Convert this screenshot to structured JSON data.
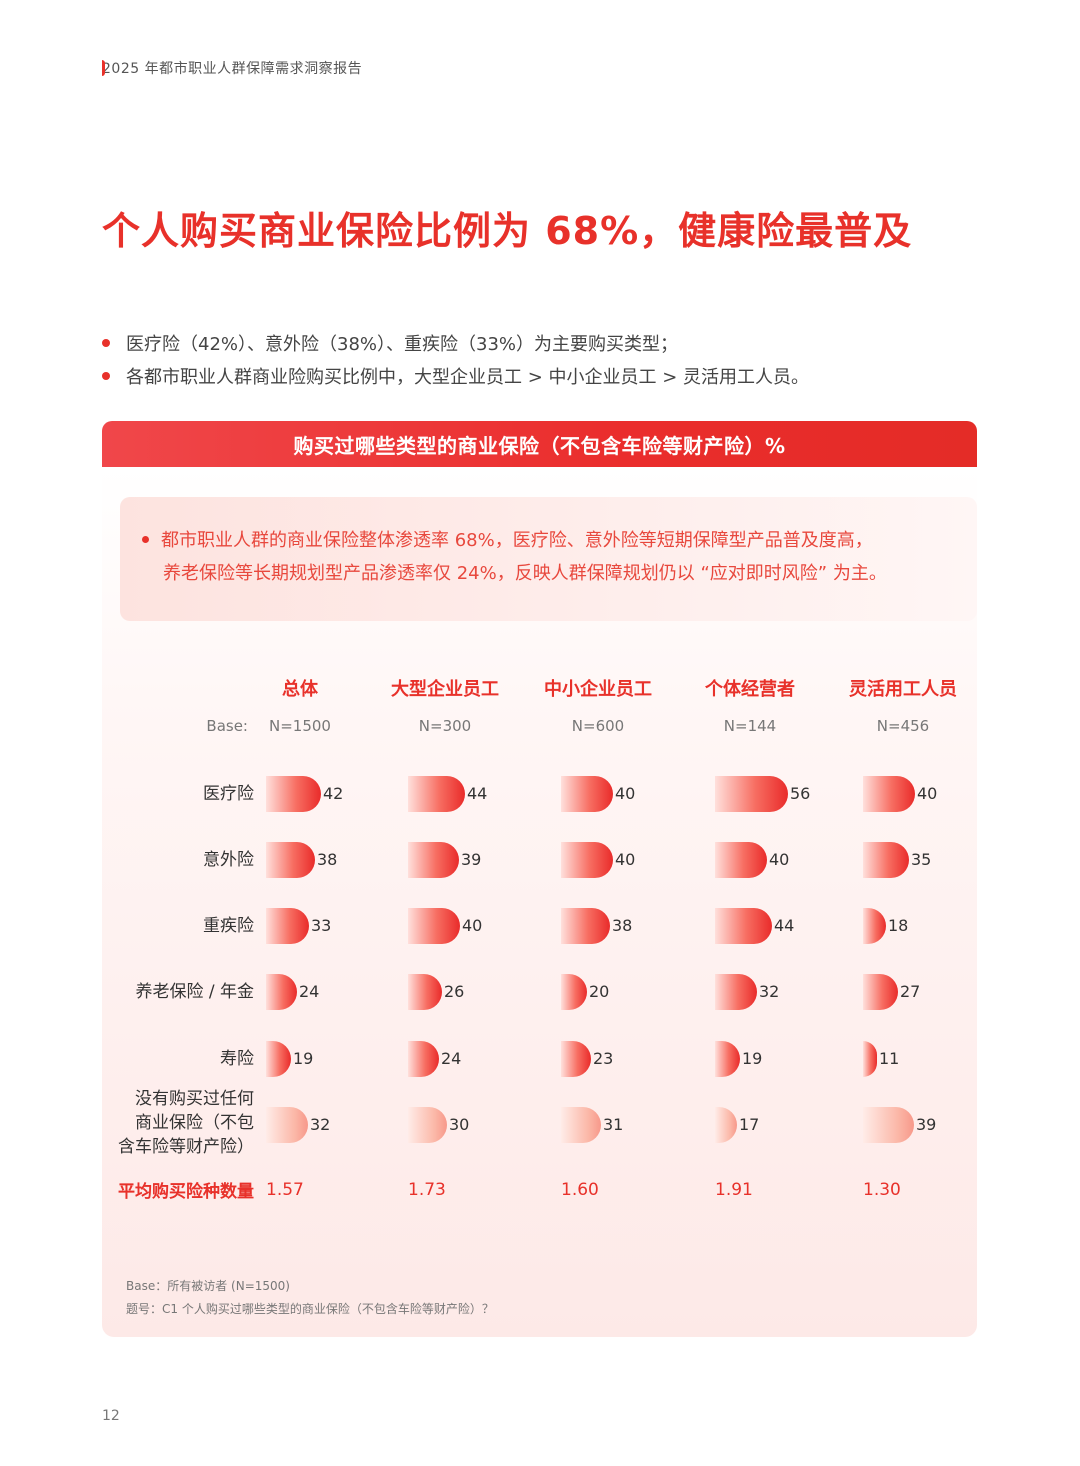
{
  "header": {
    "report_title": "2025 年都市职业人群保障需求洞察报告"
  },
  "page_title": "个人购买商业保险比例为 68%，健康险最普及",
  "bullets": [
    "医疗险（42%）、意外险（38%）、重疾险（33%）为主要购买类型；",
    "各都市职业人群商业险购买比例中，大型企业员工 > 中小企业员工 > 灵活用工人员。"
  ],
  "section_title": "购买过哪些类型的商业保险（不包含车险等财产险）%",
  "insight": {
    "line1": "都市职业人群的商业保险整体渗透率 68%，医疗险、意外险等短期保障型产品普及度高，",
    "line2": "养老保险等长期规划型产品渗透率仅 24%，反映人群保障规划仍以 “应对即时风险” 为主。"
  },
  "table": {
    "base_label": "Base:",
    "columns": [
      {
        "name": "总体",
        "n": "N=1500"
      },
      {
        "name": "大型企业员工",
        "n": "N=300"
      },
      {
        "name": "中小企业员工",
        "n": "N=600"
      },
      {
        "name": "个体经营者",
        "n": "N=144"
      },
      {
        "name": "灵活用工人员",
        "n": "N=456"
      }
    ],
    "rows": [
      {
        "label": "医疗险",
        "values": [
          42,
          44,
          40,
          56,
          40
        ]
      },
      {
        "label": "意外险",
        "values": [
          38,
          39,
          40,
          40,
          35
        ]
      },
      {
        "label": "重疾险",
        "values": [
          33,
          40,
          38,
          44,
          18
        ]
      },
      {
        "label": "养老保险 / 年金",
        "values": [
          24,
          26,
          20,
          32,
          27
        ]
      },
      {
        "label": "寿险",
        "values": [
          19,
          24,
          23,
          19,
          11
        ]
      },
      {
        "label_lines": [
          "没有购买过任何",
          "商业保险（不包",
          "含车险等财产险）"
        ],
        "values": [
          32,
          30,
          31,
          17,
          39
        ]
      }
    ],
    "avg_label": "平均购买险种数量",
    "avg_values": [
      "1.57",
      "1.73",
      "1.60",
      "1.91",
      "1.30"
    ]
  },
  "footnotes": {
    "base": "Base：所有被访者 (N=1500)",
    "question": "题号：C1 个人购买过哪些类型的商业保险（不包含车险等财产险）？"
  },
  "page_number": "12"
}
